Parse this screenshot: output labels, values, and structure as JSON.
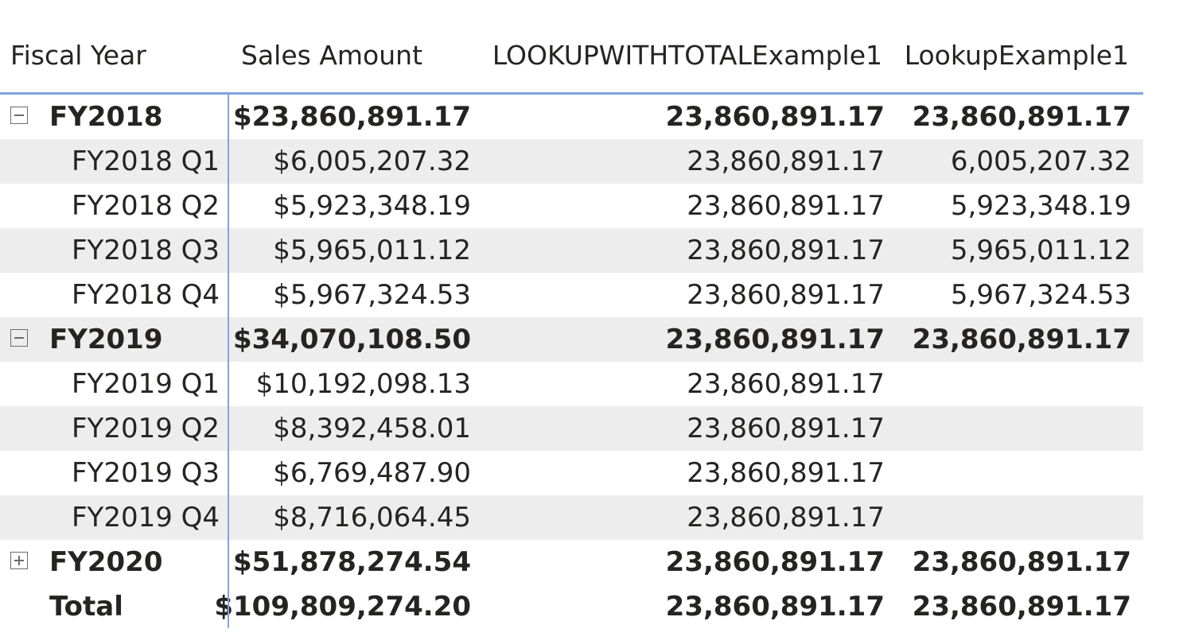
{
  "columns": {
    "fiscal_year": "Fiscal Year",
    "sales_amount": "Sales Amount",
    "lookup_with_total": "LOOKUPWITHTOTALExample1",
    "lookup": "LookupExample1"
  },
  "rows": [
    {
      "type": "parent",
      "toggle": "minus",
      "label": "FY2018",
      "sales": "$23,860,891.17",
      "lwt": "23,860,891.17",
      "lookup": "23,860,891.17"
    },
    {
      "type": "child",
      "label": "FY2018 Q1",
      "sales": "$6,005,207.32",
      "lwt": "23,860,891.17",
      "lookup": "6,005,207.32"
    },
    {
      "type": "child",
      "label": "FY2018 Q2",
      "sales": "$5,923,348.19",
      "lwt": "23,860,891.17",
      "lookup": "5,923,348.19"
    },
    {
      "type": "child",
      "label": "FY2018 Q3",
      "sales": "$5,965,011.12",
      "lwt": "23,860,891.17",
      "lookup": "5,965,011.12"
    },
    {
      "type": "child",
      "label": "FY2018 Q4",
      "sales": "$5,967,324.53",
      "lwt": "23,860,891.17",
      "lookup": "5,967,324.53"
    },
    {
      "type": "parent",
      "toggle": "minus",
      "label": "FY2019",
      "sales": "$34,070,108.50",
      "lwt": "23,860,891.17",
      "lookup": "23,860,891.17"
    },
    {
      "type": "child",
      "label": "FY2019 Q1",
      "sales": "$10,192,098.13",
      "lwt": "23,860,891.17",
      "lookup": ""
    },
    {
      "type": "child",
      "label": "FY2019 Q2",
      "sales": "$8,392,458.01",
      "lwt": "23,860,891.17",
      "lookup": ""
    },
    {
      "type": "child",
      "label": "FY2019 Q3",
      "sales": "$6,769,487.90",
      "lwt": "23,860,891.17",
      "lookup": ""
    },
    {
      "type": "child",
      "label": "FY2019 Q4",
      "sales": "$8,716,064.45",
      "lwt": "23,860,891.17",
      "lookup": ""
    },
    {
      "type": "parent",
      "toggle": "plus",
      "label": "FY2020",
      "sales": "$51,878,274.54",
      "lwt": "23,860,891.17",
      "lookup": "23,860,891.17"
    },
    {
      "type": "total",
      "label": "Total",
      "sales": "$109,809,274.20",
      "lwt": "23,860,891.17",
      "lookup": "23,860,891.17"
    }
  ],
  "colors": {
    "accent_line": "#7fa5dc",
    "alt_row": "#ededed",
    "text": "#252423"
  }
}
